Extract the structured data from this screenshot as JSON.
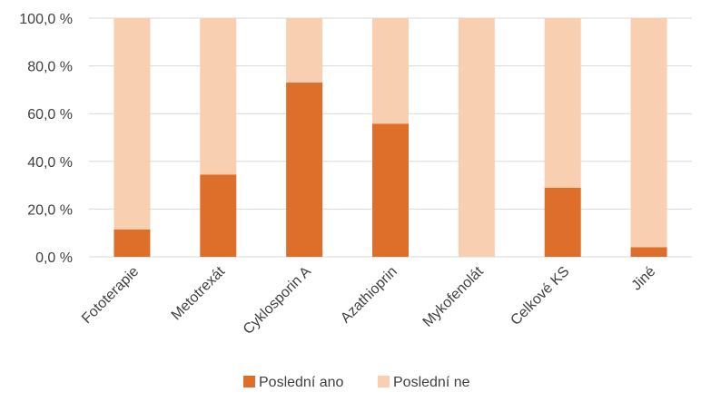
{
  "chart_data": {
    "type": "bar",
    "stacked": true,
    "categories": [
      "Fototerapie",
      "Metotrexát",
      "Cyklosporin A",
      "Azathioprin",
      "Mykofenolát",
      "Celkové KS",
      "Jiné"
    ],
    "series": [
      {
        "name": "Poslední ano",
        "values": [
          11.5,
          34.5,
          73.0,
          55.8,
          0.0,
          29.0,
          4.0
        ],
        "color": "#DE6F2A"
      },
      {
        "name": "Poslední ne",
        "values": [
          88.5,
          65.5,
          27.0,
          44.2,
          100.0,
          71.0,
          96.0
        ],
        "color": "#F8CFB0"
      }
    ],
    "ylim": [
      0,
      100
    ],
    "yticks": [
      "0,0 %",
      "20,0 %",
      "40,0 %",
      "60,0 %",
      "80,0 %",
      "100,0 %"
    ],
    "ytick_values": [
      0,
      20,
      40,
      60,
      80,
      100
    ],
    "grid": true,
    "legend_position": "bottom",
    "gridline_color": "#D9D9D9"
  }
}
